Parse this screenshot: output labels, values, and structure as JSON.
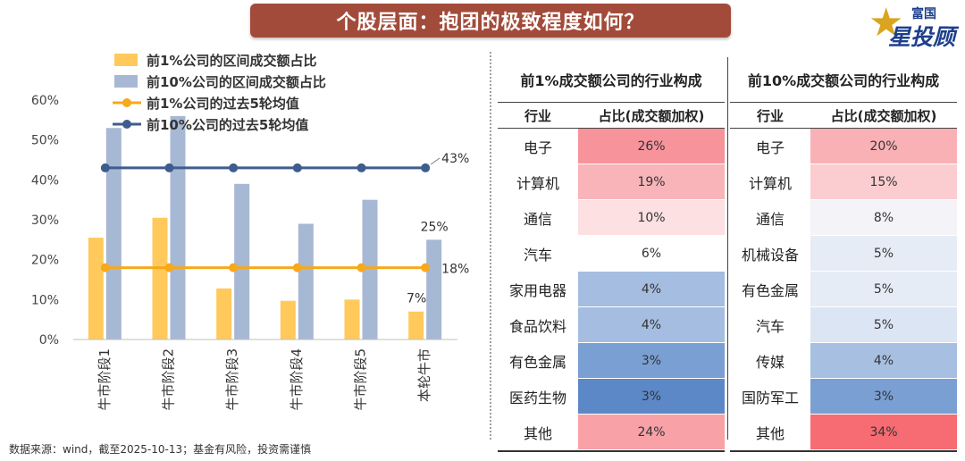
{
  "title": "个股层面：抱团的极致程度如何？",
  "logo": {
    "top": "富国",
    "main": "星投顾"
  },
  "chart_data": {
    "type": "bar",
    "categories": [
      "牛市阶段1",
      "牛市阶段2",
      "牛市阶段3",
      "牛市阶段4",
      "牛市阶段5",
      "本轮牛市"
    ],
    "series": [
      {
        "name": "前1%公司的区间成交额占比",
        "kind": "bar",
        "color": "#ffc95c",
        "values": [
          25.5,
          30.5,
          12.8,
          9.7,
          10.0,
          7.0
        ]
      },
      {
        "name": "前10%公司的区间成交额占比",
        "kind": "bar",
        "color": "#a6b8d4",
        "values": [
          53.0,
          56.0,
          39.0,
          29.0,
          35.0,
          25.0
        ]
      },
      {
        "name": "前1%公司的过去5轮均值",
        "kind": "line",
        "color": "#f7a81b",
        "values": [
          18,
          18,
          18,
          18,
          18,
          18
        ]
      },
      {
        "name": "前10%公司的过去5轮均值",
        "kind": "line",
        "color": "#3e5c8e",
        "values": [
          43,
          43,
          43,
          43,
          43,
          43
        ]
      }
    ],
    "y_ticks": [
      "0%",
      "10%",
      "20%",
      "30%",
      "40%",
      "50%",
      "60%"
    ],
    "ylim": [
      0,
      60
    ],
    "annotations": {
      "line10": "43%",
      "line1": "18%",
      "bar10_last": "25%",
      "bar1_last": "7%"
    }
  },
  "table_left": {
    "title": "前1%成交额公司的行业构成",
    "headers": [
      "行业",
      "占比(成交额加权)"
    ],
    "rows": [
      {
        "name": "电子",
        "value": "26%",
        "color": "#f7939a"
      },
      {
        "name": "计算机",
        "value": "19%",
        "color": "#f9b4b9"
      },
      {
        "name": "通信",
        "value": "10%",
        "color": "#fce0e2"
      },
      {
        "name": "汽车",
        "value": "6%",
        "color": "#ffffff"
      },
      {
        "name": "家用电器",
        "value": "4%",
        "color": "#a4bde0"
      },
      {
        "name": "食品饮料",
        "value": "4%",
        "color": "#a4bde0"
      },
      {
        "name": "有色金属",
        "value": "3%",
        "color": "#7a9fd3"
      },
      {
        "name": "医药生物",
        "value": "3%",
        "color": "#5d88c8"
      },
      {
        "name": "其他",
        "value": "24%",
        "color": "#f8a1a7"
      }
    ]
  },
  "table_right": {
    "title": "前10%成交额公司的行业构成",
    "headers": [
      "行业",
      "占比(成交额加权)"
    ],
    "rows": [
      {
        "name": "电子",
        "value": "20%",
        "color": "#f9b1b6"
      },
      {
        "name": "计算机",
        "value": "15%",
        "color": "#fbcdd0"
      },
      {
        "name": "通信",
        "value": "8%",
        "color": "#f4f4f8"
      },
      {
        "name": "机械设备",
        "value": "5%",
        "color": "#e6ecf6"
      },
      {
        "name": "有色金属",
        "value": "5%",
        "color": "#e6ecf6"
      },
      {
        "name": "汽车",
        "value": "5%",
        "color": "#dce5f3"
      },
      {
        "name": "传媒",
        "value": "4%",
        "color": "#a7c0e2"
      },
      {
        "name": "国防军工",
        "value": "3%",
        "color": "#7a9fd3"
      },
      {
        "name": "其他",
        "value": "34%",
        "color": "#f76b72"
      }
    ]
  },
  "source": "数据来源：wind，截至2025-10-13；基金有风险，投资需谨慎"
}
